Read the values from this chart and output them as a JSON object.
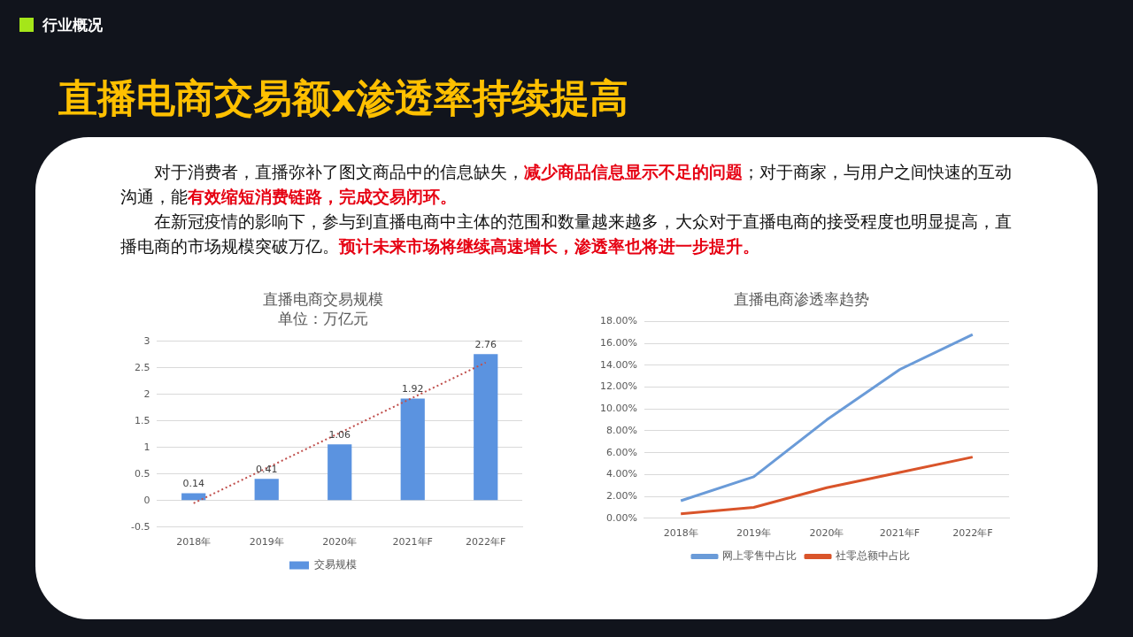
{
  "chart_data": [
    {
      "type": "other",
      "title": "直播电商交易额x渗透率持续提高",
      "annotations": [
        "行业概况",
        "对于消费者，直播弥补了图文商品中的信息缺失，",
        "减少商品信息显示不足的问题",
        "；对于商家，与用户之间快速的互动沟通，能",
        "有效缩短消费链路，完成交易闭环。",
        "在新冠疫情的影响下，参与到直播电商中主体的范围和数量越来越多，大众对于直播电商的接受程度也明显提高，直播电商的市场规模突破万亿。",
        "预计未来市场将继续高速增长，渗透率也将进一步提升。"
      ]
    },
    {
      "type": "bar",
      "title": "直播电商交易规模",
      "subtitle": "单位：万亿元",
      "categories": [
        "2018年",
        "2019年",
        "2020年",
        "2021年F",
        "2022年F"
      ],
      "series": [
        {
          "name": "交易规模",
          "color": "#5b93e0",
          "values": [
            0.14,
            0.41,
            1.06,
            1.92,
            2.76
          ],
          "value_labels": [
            "0.14",
            "0.41",
            "1.06",
            "1.92",
            "2.76"
          ]
        },
        {
          "type": "line",
          "color": "#c0504d",
          "x": [
            "2018年",
            "2022年F"
          ],
          "values": [
            -0.05,
            2.6
          ],
          "line_style": "dotted",
          "marker": "none"
        }
      ],
      "ylim": [
        -0.5,
        3
      ],
      "yticks": [
        -0.5,
        0,
        0.5,
        1,
        1.5,
        2,
        2.5,
        3
      ],
      "grid": "y",
      "legend": "bottom"
    },
    {
      "type": "line",
      "title": "直播电商渗透率趋势",
      "categories": [
        "2018年",
        "2019年",
        "2020年",
        "2021年F",
        "2022年F"
      ],
      "series": [
        {
          "name": "网上零售中占比",
          "color": "#6a9bd8",
          "values": [
            1.6,
            3.8,
            9.0,
            13.6,
            16.8
          ]
        },
        {
          "name": "社零总额中占比",
          "color": "#d9542a",
          "values": [
            0.4,
            1.0,
            2.8,
            4.2,
            5.6
          ]
        }
      ],
      "ylim": [
        0,
        18
      ],
      "yticks": [
        {
          "value": 0,
          "label": "0.00%"
        },
        {
          "value": 2,
          "label": "2.00%"
        },
        {
          "value": 4,
          "label": "4.00%"
        },
        {
          "value": 6,
          "label": "6.00%"
        },
        {
          "value": 8,
          "label": "8.00%"
        },
        {
          "value": 10,
          "label": "10.00%"
        },
        {
          "value": 12,
          "label": "12.00%"
        },
        {
          "value": 14,
          "label": "14.00%"
        },
        {
          "value": 16,
          "label": "16.00%"
        },
        {
          "value": 18,
          "label": "18.00%"
        }
      ],
      "grid": "y",
      "legend": "bottom",
      "marker": "none"
    }
  ]
}
